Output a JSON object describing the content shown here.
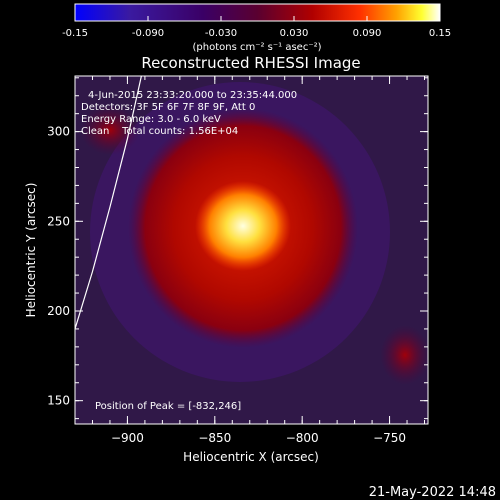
{
  "colorbar": {
    "ticks": [
      "-0.15",
      "-0.090",
      "-0.030",
      "0.030",
      "0.090",
      "0.15"
    ],
    "unit_label": "(photons cm⁻² s⁻¹ asec⁻²)",
    "colors": [
      "#0000ff",
      "#2b00a8",
      "#3a0066",
      "#5a0026",
      "#b00000",
      "#ff2a00",
      "#ffa500",
      "#ffff40",
      "#ffffff"
    ]
  },
  "plot": {
    "title": "Reconstructed RHESSI Image",
    "info_lines": [
      "4-Jun-2015 23:33:20.000 to 23:35:44.000",
      "Detectors: 3F 5F 6F 7F 8F 9F, Att 0",
      "Energy Range: 3.0 - 6.0 keV",
      "Clean    Total counts: 1.56E+04"
    ],
    "peak_label": "Position of Peak = [-832,246]",
    "timestamp": "21-May-2022 14:48",
    "background_color": "#2a1238"
  },
  "chart_data": {
    "type": "heatmap",
    "title": "Reconstructed RHESSI Image",
    "xlabel": "Heliocentric X (arcsec)",
    "ylabel": "Heliocentric Y (arcsec)",
    "xlim": [
      -930,
      -728
    ],
    "ylim": [
      137,
      331
    ],
    "xticks": [
      -900,
      -850,
      -800,
      -750
    ],
    "yticks": [
      150,
      200,
      250,
      300
    ],
    "xtick_labels": [
      "−900",
      "−850",
      "−800",
      "−750"
    ],
    "ytick_labels": [
      "150",
      "200",
      "250",
      "300"
    ],
    "color_range": [
      -0.15,
      0.15
    ],
    "peak": [
      -832,
      246
    ],
    "limb_curve": [
      [
        -930,
        190
      ],
      [
        -920,
        222
      ],
      [
        -910,
        258
      ],
      [
        -900,
        296
      ],
      [
        -892,
        331
      ]
    ]
  }
}
